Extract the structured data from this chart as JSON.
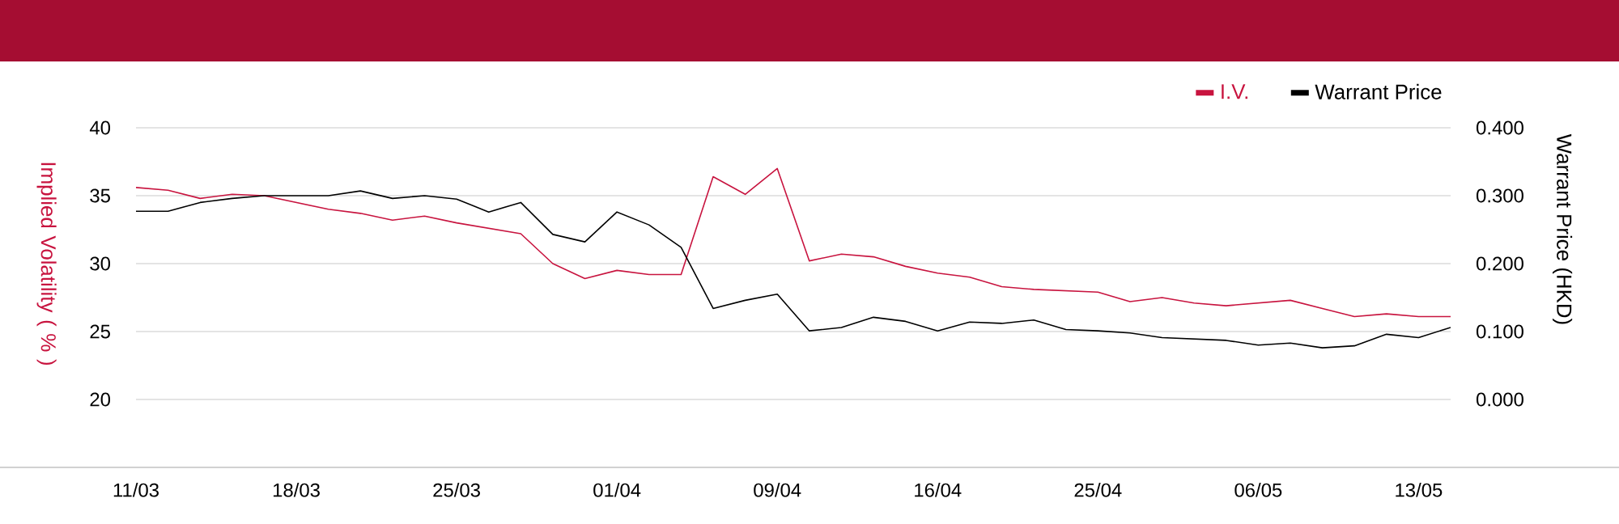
{
  "chart_data": {
    "type": "line",
    "ylabel": "Implied Volatility ( % )",
    "y2label": "Warrant Price (HKD)",
    "categories": [
      "11/03",
      null,
      null,
      null,
      null,
      "18/03",
      null,
      null,
      null,
      null,
      "25/03",
      null,
      null,
      null,
      null,
      "01/04",
      null,
      null,
      null,
      null,
      "09/04",
      null,
      null,
      null,
      null,
      "16/04",
      null,
      null,
      null,
      null,
      "25/04",
      null,
      null,
      null,
      null,
      "06/05",
      null,
      null,
      null,
      null,
      "13/05",
      null
    ],
    "series": [
      {
        "name": "I.V.",
        "color": "#c8143f",
        "values": [
          35.6,
          35.4,
          34.8,
          35.1,
          35.0,
          34.5,
          34.0,
          33.7,
          33.2,
          33.5,
          33.0,
          32.6,
          32.2,
          30.0,
          28.9,
          29.5,
          29.2,
          29.2,
          36.4,
          35.1,
          37.0,
          30.2,
          30.7,
          30.5,
          29.8,
          29.3,
          29.0,
          28.3,
          28.1,
          28.0,
          27.9,
          27.2,
          27.5,
          27.1,
          26.9,
          27.1,
          27.3,
          26.7,
          26.1,
          26.3,
          26.1,
          26.1
        ]
      },
      {
        "name": "Warrant Price",
        "color": "#000000",
        "axis": "y2",
        "values": [
          0.277,
          0.277,
          0.29,
          0.296,
          0.3,
          0.3,
          0.3,
          0.307,
          0.296,
          0.3,
          0.295,
          0.276,
          0.29,
          0.243,
          0.232,
          0.276,
          0.257,
          0.224,
          0.134,
          0.146,
          0.155,
          0.101,
          0.106,
          0.121,
          0.115,
          0.101,
          0.114,
          0.112,
          0.117,
          0.103,
          0.101,
          0.098,
          0.091,
          0.089,
          0.087,
          0.08,
          0.083,
          0.076,
          0.079,
          0.096,
          0.091,
          0.106
        ]
      }
    ],
    "ylim": [
      15,
      40
    ],
    "yticks": [
      20,
      25,
      30,
      35,
      40
    ],
    "y2lim": [
      -0.1,
      0.4
    ],
    "y2ticks": [
      {
        "value": 0,
        "label": "0.000"
      },
      {
        "value": 0.1,
        "label": "0.100"
      },
      {
        "value": 0.2,
        "label": "0.200"
      },
      {
        "value": 0.3,
        "label": "0.300"
      },
      {
        "value": 0.4,
        "label": "0.400"
      }
    ],
    "grid": "y",
    "legend": "top right"
  }
}
